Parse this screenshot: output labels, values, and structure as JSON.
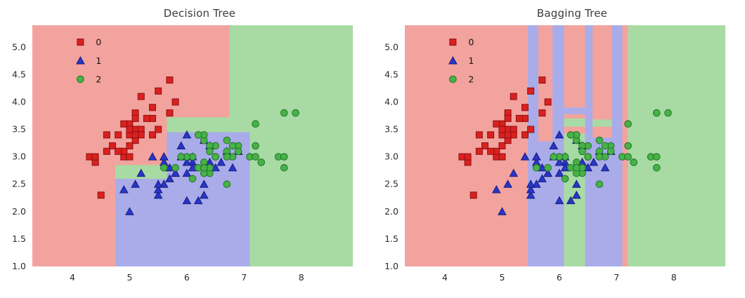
{
  "figure": {
    "background": "#ffffff"
  },
  "chart_data": [
    {
      "type": "scatter",
      "title": "Decision Tree",
      "xlabel": "",
      "ylabel": "",
      "xlim": [
        3.3,
        8.9
      ],
      "ylim": [
        1.0,
        5.4
      ],
      "xticks": [
        4,
        5,
        6,
        7,
        8
      ],
      "yticks": [
        1.0,
        1.5,
        2.0,
        2.5,
        3.0,
        3.5,
        4.0,
        4.5,
        5.0
      ],
      "grid": false,
      "legend": {
        "position": "upper-left",
        "items": [
          {
            "label": "0",
            "class": "0"
          },
          {
            "label": "1",
            "class": "1"
          },
          {
            "label": "2",
            "class": "2"
          }
        ]
      },
      "classes": {
        "0": {
          "marker": "square",
          "color": "#da2120",
          "edge": "#8e1012",
          "region": "#f2a39e"
        },
        "1": {
          "marker": "triangle",
          "color": "#2a35c8",
          "edge": "#141d7d",
          "region": "#a9ace9"
        },
        "2": {
          "marker": "circle",
          "color": "#47b247",
          "edge": "#23742a",
          "region": "#a7dba3"
        }
      },
      "regions_format": "[x1, y1, x2, y2, class]",
      "regions": [
        [
          3.3,
          1.0,
          6.75,
          5.4,
          "0"
        ],
        [
          6.75,
          1.0,
          8.9,
          5.4,
          "2"
        ],
        [
          5.65,
          1.0,
          7.1,
          3.45,
          "1"
        ],
        [
          4.75,
          1.0,
          5.65,
          2.6,
          "1"
        ],
        [
          4.75,
          2.6,
          5.65,
          2.85,
          "2"
        ],
        [
          5.65,
          3.45,
          6.75,
          3.72,
          "2"
        ]
      ],
      "series": [
        {
          "name": "0",
          "class": "0",
          "points": [
            [
              5.1,
              3.5
            ],
            [
              4.9,
              3.0
            ],
            [
              4.7,
              3.2
            ],
            [
              4.6,
              3.1
            ],
            [
              5.0,
              3.6
            ],
            [
              5.4,
              3.9
            ],
            [
              4.6,
              3.4
            ],
            [
              5.0,
              3.4
            ],
            [
              4.4,
              2.9
            ],
            [
              4.9,
              3.1
            ],
            [
              5.4,
              3.7
            ],
            [
              4.8,
              3.4
            ],
            [
              4.3,
              3.0
            ],
            [
              5.8,
              4.0
            ],
            [
              5.7,
              4.4
            ],
            [
              5.1,
              3.5
            ],
            [
              5.7,
              3.8
            ],
            [
              5.1,
              3.8
            ],
            [
              5.4,
              3.4
            ],
            [
              5.1,
              3.7
            ],
            [
              5.1,
              3.3
            ],
            [
              5.0,
              3.0
            ],
            [
              5.2,
              3.5
            ],
            [
              5.2,
              3.4
            ],
            [
              4.8,
              3.1
            ],
            [
              5.2,
              4.1
            ],
            [
              5.5,
              4.2
            ],
            [
              5.0,
              3.2
            ],
            [
              5.5,
              3.5
            ],
            [
              4.9,
              3.6
            ],
            [
              4.4,
              3.0
            ],
            [
              5.1,
              3.4
            ],
            [
              4.5,
              2.3
            ],
            [
              5.0,
              3.5
            ],
            [
              5.3,
              3.7
            ]
          ]
        },
        {
          "name": "1",
          "class": "1",
          "points": [
            [
              6.4,
              3.2
            ],
            [
              6.9,
              3.1
            ],
            [
              5.5,
              2.3
            ],
            [
              6.5,
              2.8
            ],
            [
              5.7,
              2.8
            ],
            [
              6.3,
              3.3
            ],
            [
              4.9,
              2.4
            ],
            [
              6.6,
              2.9
            ],
            [
              5.2,
              2.7
            ],
            [
              5.0,
              2.0
            ],
            [
              5.9,
              3.0
            ],
            [
              6.0,
              2.2
            ],
            [
              6.1,
              2.9
            ],
            [
              5.6,
              2.9
            ],
            [
              6.7,
              3.1
            ],
            [
              5.6,
              3.0
            ],
            [
              5.8,
              2.7
            ],
            [
              6.2,
              2.2
            ],
            [
              5.6,
              2.5
            ],
            [
              5.9,
              3.2
            ],
            [
              6.1,
              2.8
            ],
            [
              6.3,
              2.5
            ],
            [
              6.4,
              2.9
            ],
            [
              6.8,
              2.8
            ],
            [
              6.0,
              2.9
            ],
            [
              5.7,
              2.6
            ],
            [
              5.5,
              2.4
            ],
            [
              5.8,
              2.7
            ],
            [
              6.0,
              2.7
            ],
            [
              5.4,
              3.0
            ],
            [
              6.0,
              3.4
            ],
            [
              6.3,
              2.3
            ],
            [
              5.6,
              3.0
            ],
            [
              5.5,
              2.5
            ],
            [
              6.1,
              3.0
            ],
            [
              5.1,
              2.5
            ]
          ]
        },
        {
          "name": "2",
          "class": "2",
          "points": [
            [
              6.3,
              3.3
            ],
            [
              7.1,
              3.0
            ],
            [
              6.3,
              2.9
            ],
            [
              6.5,
              3.0
            ],
            [
              7.6,
              3.0
            ],
            [
              7.3,
              2.9
            ],
            [
              6.7,
              2.5
            ],
            [
              7.2,
              3.6
            ],
            [
              6.5,
              3.2
            ],
            [
              6.4,
              2.7
            ],
            [
              6.8,
              3.0
            ],
            [
              5.8,
              2.8
            ],
            [
              6.4,
              3.2
            ],
            [
              7.7,
              3.8
            ],
            [
              6.9,
              3.2
            ],
            [
              5.6,
              2.8
            ],
            [
              7.7,
              2.8
            ],
            [
              6.3,
              2.7
            ],
            [
              6.7,
              3.3
            ],
            [
              7.2,
              3.2
            ],
            [
              6.2,
              2.8
            ],
            [
              6.1,
              3.0
            ],
            [
              6.4,
              2.8
            ],
            [
              7.2,
              3.0
            ],
            [
              7.9,
              3.8
            ],
            [
              6.3,
              2.8
            ],
            [
              6.1,
              2.6
            ],
            [
              7.7,
              3.0
            ],
            [
              6.3,
              3.4
            ],
            [
              6.4,
              3.1
            ],
            [
              6.0,
              3.0
            ],
            [
              6.9,
              3.1
            ],
            [
              6.7,
              3.1
            ],
            [
              6.8,
              3.2
            ],
            [
              6.7,
              3.0
            ],
            [
              6.5,
              3.0
            ],
            [
              6.2,
              3.4
            ],
            [
              5.9,
              3.0
            ]
          ]
        }
      ]
    },
    {
      "type": "scatter",
      "title": "Bagging Tree",
      "xlabel": "",
      "ylabel": "",
      "xlim": [
        3.3,
        8.9
      ],
      "ylim": [
        1.0,
        5.4
      ],
      "xticks": [
        4,
        5,
        6,
        7,
        8
      ],
      "yticks": [
        1.0,
        1.5,
        2.0,
        2.5,
        3.0,
        3.5,
        4.0,
        4.5,
        5.0
      ],
      "grid": false,
      "legend": {
        "position": "upper-left",
        "items": [
          {
            "label": "0",
            "class": "0"
          },
          {
            "label": "1",
            "class": "1"
          },
          {
            "label": "2",
            "class": "2"
          }
        ]
      },
      "classes": {
        "0": {
          "marker": "square",
          "color": "#da2120",
          "edge": "#8e1012",
          "region": "#f2a39e"
        },
        "1": {
          "marker": "triangle",
          "color": "#2a35c8",
          "edge": "#141d7d",
          "region": "#a9ace9"
        },
        "2": {
          "marker": "circle",
          "color": "#47b247",
          "edge": "#23742a",
          "region": "#a7dba3"
        }
      },
      "regions_format": "[x1, y1, x2, y2, class]",
      "regions": [
        [
          3.3,
          1.0,
          7.2,
          5.4,
          "0"
        ],
        [
          7.2,
          1.0,
          8.9,
          5.4,
          "2"
        ],
        [
          5.45,
          1.0,
          5.63,
          5.4,
          "1"
        ],
        [
          5.88,
          1.0,
          6.08,
          5.4,
          "1"
        ],
        [
          6.45,
          1.0,
          6.58,
          5.4,
          "1"
        ],
        [
          6.92,
          1.0,
          7.1,
          5.4,
          "1"
        ],
        [
          5.45,
          1.0,
          6.08,
          3.28,
          "1"
        ],
        [
          6.08,
          1.0,
          6.45,
          3.42,
          "2"
        ],
        [
          6.58,
          1.0,
          7.1,
          3.35,
          "1"
        ],
        [
          6.08,
          3.55,
          6.45,
          3.7,
          "2"
        ],
        [
          6.08,
          3.78,
          6.45,
          3.9,
          "1"
        ],
        [
          6.58,
          3.55,
          6.92,
          3.68,
          "2"
        ]
      ],
      "series": [
        {
          "name": "0",
          "class": "0",
          "points": [
            [
              5.1,
              3.5
            ],
            [
              4.9,
              3.0
            ],
            [
              4.7,
              3.2
            ],
            [
              4.6,
              3.1
            ],
            [
              5.0,
              3.6
            ],
            [
              5.4,
              3.9
            ],
            [
              4.6,
              3.4
            ],
            [
              5.0,
              3.4
            ],
            [
              4.4,
              2.9
            ],
            [
              4.9,
              3.1
            ],
            [
              5.4,
              3.7
            ],
            [
              4.8,
              3.4
            ],
            [
              4.3,
              3.0
            ],
            [
              5.8,
              4.0
            ],
            [
              5.7,
              4.4
            ],
            [
              5.1,
              3.5
            ],
            [
              5.7,
              3.8
            ],
            [
              5.1,
              3.8
            ],
            [
              5.4,
              3.4
            ],
            [
              5.1,
              3.7
            ],
            [
              5.1,
              3.3
            ],
            [
              5.0,
              3.0
            ],
            [
              5.2,
              3.5
            ],
            [
              5.2,
              3.4
            ],
            [
              4.8,
              3.1
            ],
            [
              5.2,
              4.1
            ],
            [
              5.5,
              4.2
            ],
            [
              5.0,
              3.2
            ],
            [
              5.5,
              3.5
            ],
            [
              4.9,
              3.6
            ],
            [
              4.4,
              3.0
            ],
            [
              5.1,
              3.4
            ],
            [
              4.5,
              2.3
            ],
            [
              5.0,
              3.5
            ],
            [
              5.3,
              3.7
            ]
          ]
        },
        {
          "name": "1",
          "class": "1",
          "points": [
            [
              6.4,
              3.2
            ],
            [
              6.9,
              3.1
            ],
            [
              5.5,
              2.3
            ],
            [
              6.5,
              2.8
            ],
            [
              5.7,
              2.8
            ],
            [
              6.3,
              3.3
            ],
            [
              4.9,
              2.4
            ],
            [
              6.6,
              2.9
            ],
            [
              5.2,
              2.7
            ],
            [
              5.0,
              2.0
            ],
            [
              5.9,
              3.0
            ],
            [
              6.0,
              2.2
            ],
            [
              6.1,
              2.9
            ],
            [
              5.6,
              2.9
            ],
            [
              6.7,
              3.1
            ],
            [
              5.6,
              3.0
            ],
            [
              5.8,
              2.7
            ],
            [
              6.2,
              2.2
            ],
            [
              5.6,
              2.5
            ],
            [
              5.9,
              3.2
            ],
            [
              6.1,
              2.8
            ],
            [
              6.3,
              2.5
            ],
            [
              6.4,
              2.9
            ],
            [
              6.8,
              2.8
            ],
            [
              6.0,
              2.9
            ],
            [
              5.7,
              2.6
            ],
            [
              5.5,
              2.4
            ],
            [
              5.8,
              2.7
            ],
            [
              6.0,
              2.7
            ],
            [
              5.4,
              3.0
            ],
            [
              6.0,
              3.4
            ],
            [
              6.3,
              2.3
            ],
            [
              5.6,
              3.0
            ],
            [
              5.5,
              2.5
            ],
            [
              6.1,
              3.0
            ],
            [
              5.1,
              2.5
            ]
          ]
        },
        {
          "name": "2",
          "class": "2",
          "points": [
            [
              6.3,
              3.3
            ],
            [
              7.1,
              3.0
            ],
            [
              6.3,
              2.9
            ],
            [
              6.5,
              3.0
            ],
            [
              7.6,
              3.0
            ],
            [
              7.3,
              2.9
            ],
            [
              6.7,
              2.5
            ],
            [
              7.2,
              3.6
            ],
            [
              6.5,
              3.2
            ],
            [
              6.4,
              2.7
            ],
            [
              6.8,
              3.0
            ],
            [
              5.8,
              2.8
            ],
            [
              6.4,
              3.2
            ],
            [
              7.7,
              3.8
            ],
            [
              6.9,
              3.2
            ],
            [
              5.6,
              2.8
            ],
            [
              7.7,
              2.8
            ],
            [
              6.3,
              2.7
            ],
            [
              6.7,
              3.3
            ],
            [
              7.2,
              3.2
            ],
            [
              6.2,
              2.8
            ],
            [
              6.1,
              3.0
            ],
            [
              6.4,
              2.8
            ],
            [
              7.2,
              3.0
            ],
            [
              7.9,
              3.8
            ],
            [
              6.3,
              2.8
            ],
            [
              6.1,
              2.6
            ],
            [
              7.7,
              3.0
            ],
            [
              6.3,
              3.4
            ],
            [
              6.4,
              3.1
            ],
            [
              6.0,
              3.0
            ],
            [
              6.9,
              3.1
            ],
            [
              6.7,
              3.1
            ],
            [
              6.8,
              3.2
            ],
            [
              6.7,
              3.0
            ],
            [
              6.5,
              3.0
            ],
            [
              6.2,
              3.4
            ],
            [
              5.9,
              3.0
            ]
          ]
        }
      ]
    }
  ]
}
